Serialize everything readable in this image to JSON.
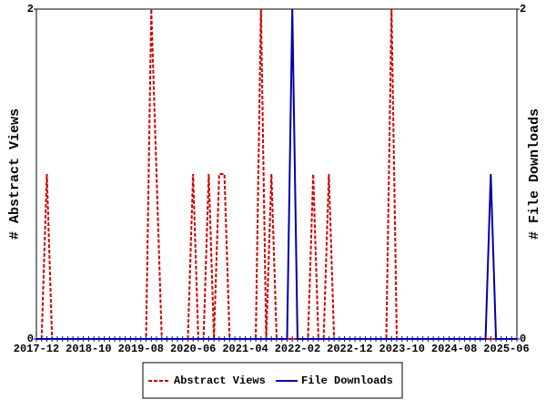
{
  "chart_data": {
    "type": "line",
    "categories": [
      "2017-12",
      null,
      null,
      null,
      null,
      null,
      null,
      null,
      null,
      null,
      "2018-10",
      null,
      null,
      null,
      null,
      null,
      null,
      null,
      null,
      null,
      "2019-08",
      null,
      null,
      null,
      null,
      null,
      null,
      null,
      null,
      null,
      "2020-06",
      null,
      null,
      null,
      null,
      null,
      null,
      null,
      null,
      null,
      "2021-04",
      null,
      null,
      null,
      null,
      null,
      null,
      null,
      null,
      null,
      "2022-02",
      null,
      null,
      null,
      null,
      null,
      null,
      null,
      null,
      null,
      "2022-12",
      null,
      null,
      null,
      null,
      null,
      null,
      null,
      null,
      null,
      "2023-10",
      null,
      null,
      null,
      null,
      null,
      null,
      null,
      null,
      null,
      "2024-08",
      null,
      null,
      null,
      null,
      null,
      null,
      null,
      null,
      null,
      "2025-06",
      null,
      null
    ],
    "series": [
      {
        "name": "Abstract Views",
        "color": "#cc0000",
        "dash": true,
        "values": [
          0,
          0,
          1,
          0,
          0,
          0,
          0,
          0,
          0,
          0,
          0,
          0,
          0,
          0,
          0,
          0,
          0,
          0,
          0,
          0,
          0,
          0,
          2,
          1,
          0,
          0,
          0,
          0,
          0,
          0,
          1,
          0,
          0,
          1,
          0,
          1,
          1,
          0,
          0,
          0,
          0,
          0,
          0,
          2,
          0,
          1,
          0,
          0,
          0,
          0,
          0,
          0,
          0,
          1,
          0,
          0,
          1,
          0,
          0,
          0,
          0,
          0,
          0,
          0,
          0,
          0,
          0,
          0,
          2,
          0,
          0,
          0,
          0,
          0,
          0,
          0,
          0,
          0,
          0,
          0,
          0,
          0,
          0,
          0,
          0,
          0,
          0,
          0,
          0,
          0,
          0,
          0,
          0
        ]
      },
      {
        "name": "File Downloads",
        "color": "#0000aa",
        "dash": false,
        "axis": "y2",
        "values": [
          0,
          0,
          0,
          0,
          0,
          0,
          0,
          0,
          0,
          0,
          0,
          0,
          0,
          0,
          0,
          0,
          0,
          0,
          0,
          0,
          0,
          0,
          0,
          0,
          0,
          0,
          0,
          0,
          0,
          0,
          0,
          0,
          0,
          0,
          0,
          0,
          0,
          0,
          0,
          0,
          0,
          0,
          0,
          0,
          0,
          0,
          0,
          0,
          0,
          2,
          0,
          0,
          0,
          0,
          0,
          0,
          0,
          0,
          0,
          0,
          0,
          0,
          0,
          0,
          0,
          0,
          0,
          0,
          0,
          0,
          0,
          0,
          0,
          0,
          0,
          0,
          0,
          0,
          0,
          0,
          0,
          0,
          0,
          0,
          0,
          0,
          0,
          1,
          0,
          0,
          0,
          0,
          0
        ]
      }
    ],
    "ylabel": "# Abstract Views",
    "y2label": "# File Downloads",
    "ylim": [
      0,
      2
    ],
    "yticks": [
      0,
      2
    ],
    "y2lim": [
      0,
      2
    ],
    "y2ticks": [
      0,
      2
    ],
    "legend": "bottom"
  }
}
